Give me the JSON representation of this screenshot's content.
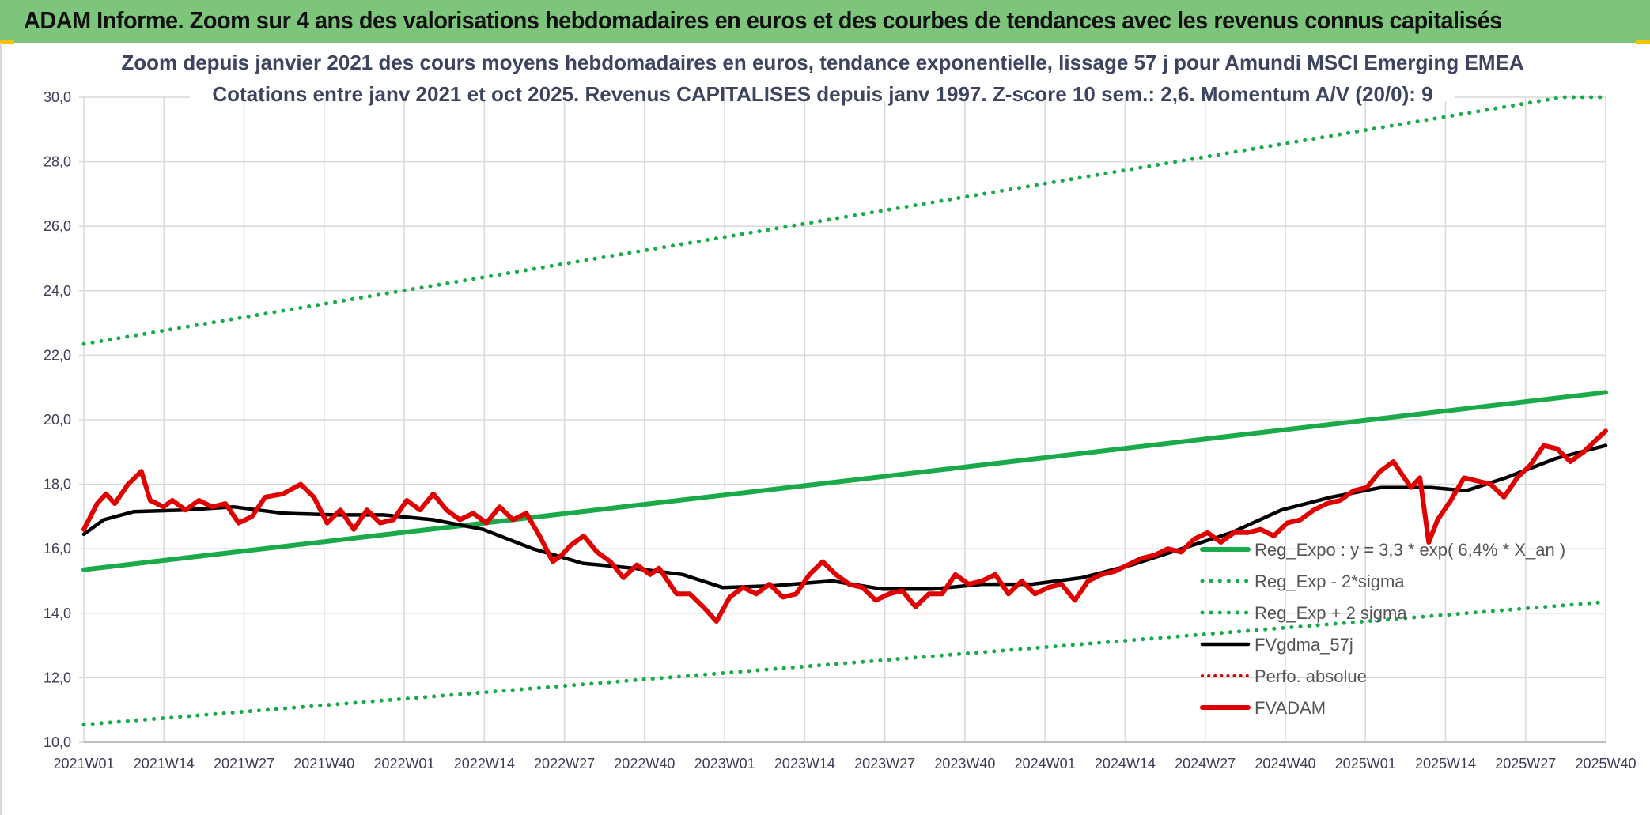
{
  "page": {
    "title": "ADAM Informe. Zoom sur 4 ans des valorisations hebdomadaires en euros et des courbes de tendances avec les revenus connus capitalisés"
  },
  "chart_data": {
    "type": "line",
    "title": "Zoom depuis janvier 2021 des cours moyens hebdomadaires en euros, tendance exponentielle, lissage 57 j pour Amundi MSCI Emerging EMEA",
    "subtitle": "Cotations entre janv 2021 et oct 2025. Revenus CAPITALISES depuis janv 1997. Z-score 10 sem.: 2,6. Momentum A/V (20/0): 9",
    "xlabel": "",
    "ylabel": "",
    "ylim": [
      10,
      30
    ],
    "yticks": [
      "10,0",
      "12,0",
      "14,0",
      "16,0",
      "18,0",
      "20,0",
      "22,0",
      "24,0",
      "26,0",
      "28,0",
      "30,0"
    ],
    "x_tick_labels": [
      "2021W01",
      "2021W14",
      "2021W27",
      "2021W40",
      "2022W01",
      "2022W14",
      "2022W27",
      "2022W40",
      "2023W01",
      "2023W14",
      "2023W27",
      "2023W40",
      "2024W01",
      "2024W14",
      "2024W27",
      "2024W40",
      "2025W01",
      "2025W14",
      "2025W27",
      "2025W40"
    ],
    "grid": true,
    "legend_position": "bottom-right",
    "colors": {
      "reg": "#1aaa4a",
      "band": "#1aaa4a",
      "smooth": "#000000",
      "perf": "#d00000",
      "fvadam": "#e00000",
      "grid": "#d9d9d9"
    },
    "series": [
      {
        "name": "Reg_Expo : y = 3,3 * exp( 6,4% *  X_an )",
        "style": "solid",
        "points": [
          [
            0,
            15.35
          ],
          [
            247,
            20.85
          ]
        ]
      },
      {
        "name": "Reg_Exp - 2*sigma",
        "style": "dotted",
        "points": [
          [
            0,
            10.55
          ],
          [
            247,
            14.35
          ]
        ]
      },
      {
        "name": "Reg_Exp + 2 sigma",
        "style": "dotted",
        "points": [
          [
            0,
            22.35
          ],
          [
            240,
            30.0
          ],
          [
            247,
            30.0
          ]
        ]
      },
      {
        "name": "FVgdma_57j",
        "style": "solid",
        "points": [
          [
            0,
            16.45
          ],
          [
            4,
            16.9
          ],
          [
            10,
            17.15
          ],
          [
            20,
            17.2
          ],
          [
            30,
            17.3
          ],
          [
            40,
            17.1
          ],
          [
            50,
            17.05
          ],
          [
            60,
            17.05
          ],
          [
            70,
            16.9
          ],
          [
            80,
            16.6
          ],
          [
            90,
            16.0
          ],
          [
            100,
            15.55
          ],
          [
            110,
            15.4
          ],
          [
            120,
            15.2
          ],
          [
            128,
            14.8
          ],
          [
            138,
            14.85
          ],
          [
            150,
            15.0
          ],
          [
            160,
            14.75
          ],
          [
            170,
            14.75
          ],
          [
            180,
            14.9
          ],
          [
            190,
            14.9
          ],
          [
            200,
            15.1
          ],
          [
            210,
            15.5
          ],
          [
            220,
            16.0
          ],
          [
            230,
            16.5
          ],
          [
            240,
            17.2
          ],
          [
            250,
            17.6
          ],
          [
            260,
            17.9
          ],
          [
            270,
            17.9
          ],
          [
            277,
            17.8
          ],
          [
            285,
            18.2
          ],
          [
            295,
            18.8
          ],
          [
            305,
            19.2
          ]
        ]
      },
      {
        "name": "Perfo. absolue",
        "style": "dotted",
        "points": []
      },
      {
        "name": "FVADAM",
        "style": "solid",
        "points": [
          [
            0,
            16.6
          ],
          [
            3,
            17.4
          ],
          [
            5,
            17.7
          ],
          [
            7,
            17.4
          ],
          [
            10,
            18.0
          ],
          [
            13,
            18.4
          ],
          [
            15,
            17.5
          ],
          [
            18,
            17.3
          ],
          [
            20,
            17.5
          ],
          [
            23,
            17.2
          ],
          [
            26,
            17.5
          ],
          [
            29,
            17.3
          ],
          [
            32,
            17.4
          ],
          [
            35,
            16.8
          ],
          [
            38,
            17.0
          ],
          [
            41,
            17.6
          ],
          [
            45,
            17.7
          ],
          [
            49,
            18.0
          ],
          [
            52,
            17.6
          ],
          [
            55,
            16.8
          ],
          [
            58,
            17.2
          ],
          [
            61,
            16.6
          ],
          [
            64,
            17.2
          ],
          [
            67,
            16.8
          ],
          [
            70,
            16.9
          ],
          [
            73,
            17.5
          ],
          [
            76,
            17.2
          ],
          [
            79,
            17.7
          ],
          [
            82,
            17.2
          ],
          [
            85,
            16.9
          ],
          [
            88,
            17.1
          ],
          [
            91,
            16.8
          ],
          [
            94,
            17.3
          ],
          [
            97,
            16.9
          ],
          [
            100,
            17.1
          ],
          [
            103,
            16.4
          ],
          [
            106,
            15.6
          ],
          [
            108,
            15.8
          ],
          [
            110,
            16.1
          ],
          [
            113,
            16.4
          ],
          [
            116,
            15.9
          ],
          [
            119,
            15.6
          ],
          [
            122,
            15.1
          ],
          [
            125,
            15.5
          ],
          [
            128,
            15.2
          ],
          [
            130,
            15.4
          ],
          [
            132,
            15.0
          ],
          [
            134,
            14.6
          ],
          [
            137,
            14.6
          ],
          [
            140,
            14.2
          ],
          [
            143,
            13.75
          ],
          [
            146,
            14.5
          ],
          [
            149,
            14.8
          ],
          [
            152,
            14.6
          ],
          [
            155,
            14.9
          ],
          [
            158,
            14.5
          ],
          [
            161,
            14.6
          ],
          [
            164,
            15.2
          ],
          [
            167,
            15.6
          ],
          [
            170,
            15.2
          ],
          [
            173,
            14.9
          ],
          [
            176,
            14.8
          ],
          [
            179,
            14.4
          ],
          [
            182,
            14.6
          ],
          [
            185,
            14.7
          ],
          [
            188,
            14.2
          ],
          [
            191,
            14.6
          ],
          [
            194,
            14.6
          ],
          [
            197,
            15.2
          ],
          [
            200,
            14.9
          ],
          [
            203,
            15.0
          ],
          [
            206,
            15.2
          ],
          [
            209,
            14.6
          ],
          [
            212,
            15.0
          ],
          [
            215,
            14.6
          ],
          [
            218,
            14.8
          ],
          [
            221,
            14.9
          ],
          [
            224,
            14.4
          ],
          [
            227,
            15.0
          ],
          [
            230,
            15.2
          ],
          [
            233,
            15.3
          ],
          [
            236,
            15.5
          ],
          [
            239,
            15.7
          ],
          [
            242,
            15.8
          ],
          [
            245,
            16.0
          ],
          [
            248,
            15.9
          ],
          [
            251,
            16.3
          ],
          [
            254,
            16.5
          ],
          [
            257,
            16.2
          ],
          [
            260,
            16.5
          ],
          [
            263,
            16.5
          ],
          [
            266,
            16.6
          ],
          [
            269,
            16.4
          ],
          [
            272,
            16.8
          ],
          [
            275,
            16.9
          ],
          [
            278,
            17.2
          ],
          [
            281,
            17.4
          ],
          [
            284,
            17.5
          ],
          [
            287,
            17.8
          ],
          [
            290,
            17.9
          ],
          [
            293,
            18.4
          ],
          [
            296,
            18.7
          ],
          [
            298,
            18.3
          ],
          [
            300,
            17.9
          ],
          [
            302,
            18.2
          ],
          [
            304,
            16.2
          ],
          [
            306,
            16.9
          ],
          [
            309,
            17.5
          ],
          [
            312,
            18.2
          ],
          [
            315,
            18.1
          ],
          [
            318,
            18.0
          ],
          [
            321,
            17.6
          ],
          [
            324,
            18.2
          ],
          [
            327,
            18.6
          ],
          [
            330,
            19.2
          ],
          [
            333,
            19.1
          ],
          [
            336,
            18.7
          ],
          [
            339,
            19.0
          ],
          [
            342,
            19.4
          ],
          [
            344,
            19.65
          ]
        ]
      }
    ]
  }
}
